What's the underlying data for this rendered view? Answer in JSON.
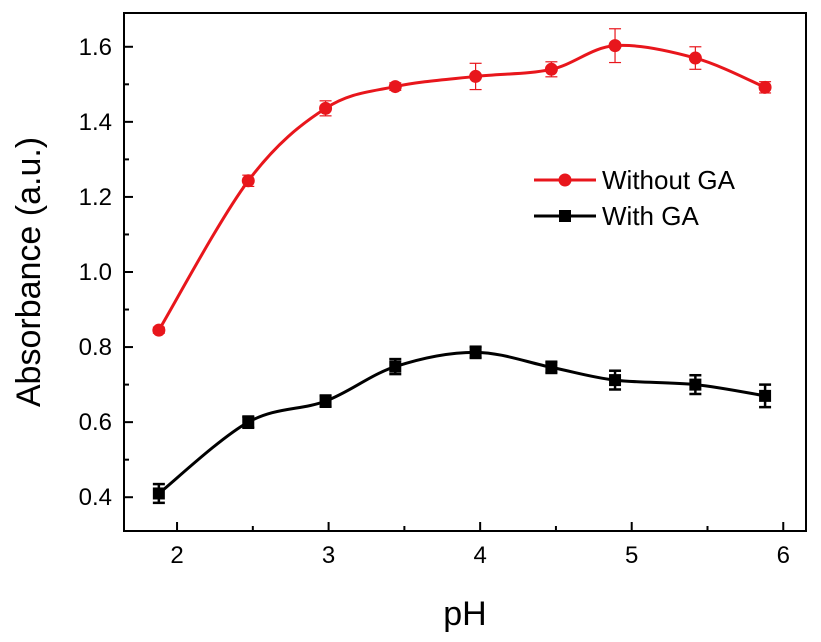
{
  "chart_data": {
    "type": "line",
    "xlabel": "pH",
    "ylabel": "Absorbance (a.u.)",
    "xlim": [
      1.65,
      6.15
    ],
    "ylim": [
      0.31,
      1.69
    ],
    "xticks": [
      2,
      3,
      4,
      5,
      6
    ],
    "yticks": [
      0.4,
      0.6,
      0.8,
      1.0,
      1.2,
      1.4,
      1.6
    ],
    "xtick_labels": [
      "2",
      "3",
      "4",
      "5",
      "6"
    ],
    "ytick_labels": [
      "0.4",
      "0.6",
      "0.8",
      "1.0",
      "1.2",
      "1.4",
      "1.6"
    ],
    "grid": false,
    "legend_position": "center-right",
    "series": [
      {
        "name": "Without GA",
        "color": "#e8161c",
        "marker": "circle",
        "x": [
          1.88,
          2.47,
          2.98,
          3.44,
          3.97,
          4.47,
          4.89,
          5.42,
          5.88
        ],
        "y": [
          0.845,
          1.243,
          1.436,
          1.494,
          1.521,
          1.54,
          1.603,
          1.57,
          1.492
        ],
        "err": [
          0.008,
          0.015,
          0.02,
          0.01,
          0.035,
          0.02,
          0.045,
          0.03,
          0.015
        ]
      },
      {
        "name": "With GA",
        "color": "#000000",
        "marker": "square",
        "x": [
          1.88,
          2.47,
          2.98,
          3.44,
          3.97,
          4.47,
          4.89,
          5.42,
          5.88
        ],
        "y": [
          0.41,
          0.6,
          0.656,
          0.748,
          0.786,
          0.746,
          0.712,
          0.7,
          0.67
        ],
        "err": [
          0.025,
          0.015,
          0.015,
          0.02,
          0.015,
          0.015,
          0.025,
          0.025,
          0.03
        ]
      }
    ]
  }
}
